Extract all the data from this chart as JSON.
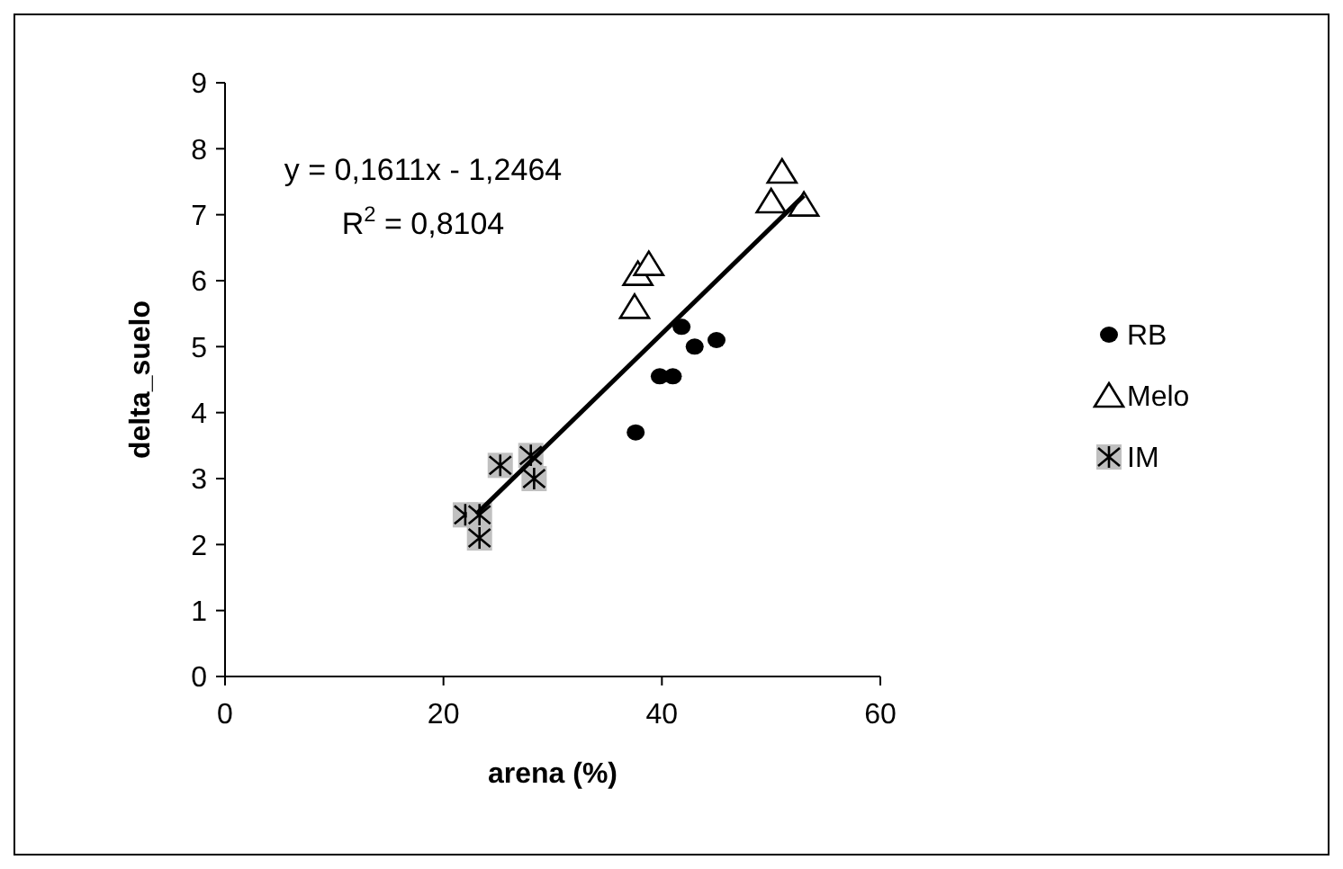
{
  "chart_data": {
    "type": "scatter",
    "xlabel": "arena (%)",
    "ylabel": "delta_suelo",
    "xlim": [
      0,
      60
    ],
    "ylim": [
      0,
      9
    ],
    "xticks": [
      0,
      20,
      40,
      60
    ],
    "yticks": [
      0,
      1,
      2,
      3,
      4,
      5,
      6,
      7,
      8,
      9
    ],
    "grid": false,
    "legend": "right",
    "annotations": [
      "y = 0,1611x - 1,2464",
      "R$^{2}$ = 0,8104"
    ],
    "series": [
      {
        "name": "RB",
        "color": "#000000",
        "marker": "circle",
        "x": [
          37.6,
          39.8,
          41,
          41.8,
          43,
          45
        ],
        "values": [
          3.7,
          4.55,
          4.55,
          5.3,
          5.0,
          5.1
        ]
      },
      {
        "name": "Melo",
        "color": "#000000",
        "marker": "triangle",
        "x": [
          37.5,
          37.8,
          38.8,
          50,
          51,
          53
        ],
        "values": [
          5.6,
          6.1,
          6.25,
          7.2,
          7.65,
          7.15
        ]
      },
      {
        "name": "IM",
        "color": "#000000",
        "marker": "cross",
        "x": [
          22,
          23.3,
          23.3,
          25.2,
          28,
          28.3
        ],
        "values": [
          2.45,
          2.45,
          2.1,
          3.2,
          3.35,
          3.0
        ]
      },
      {
        "type": "line",
        "color": "#000000",
        "line_style": "solid",
        "marker": "none",
        "x": [
          23,
          53
        ],
        "values": [
          2.46,
          7.29
        ]
      }
    ]
  }
}
